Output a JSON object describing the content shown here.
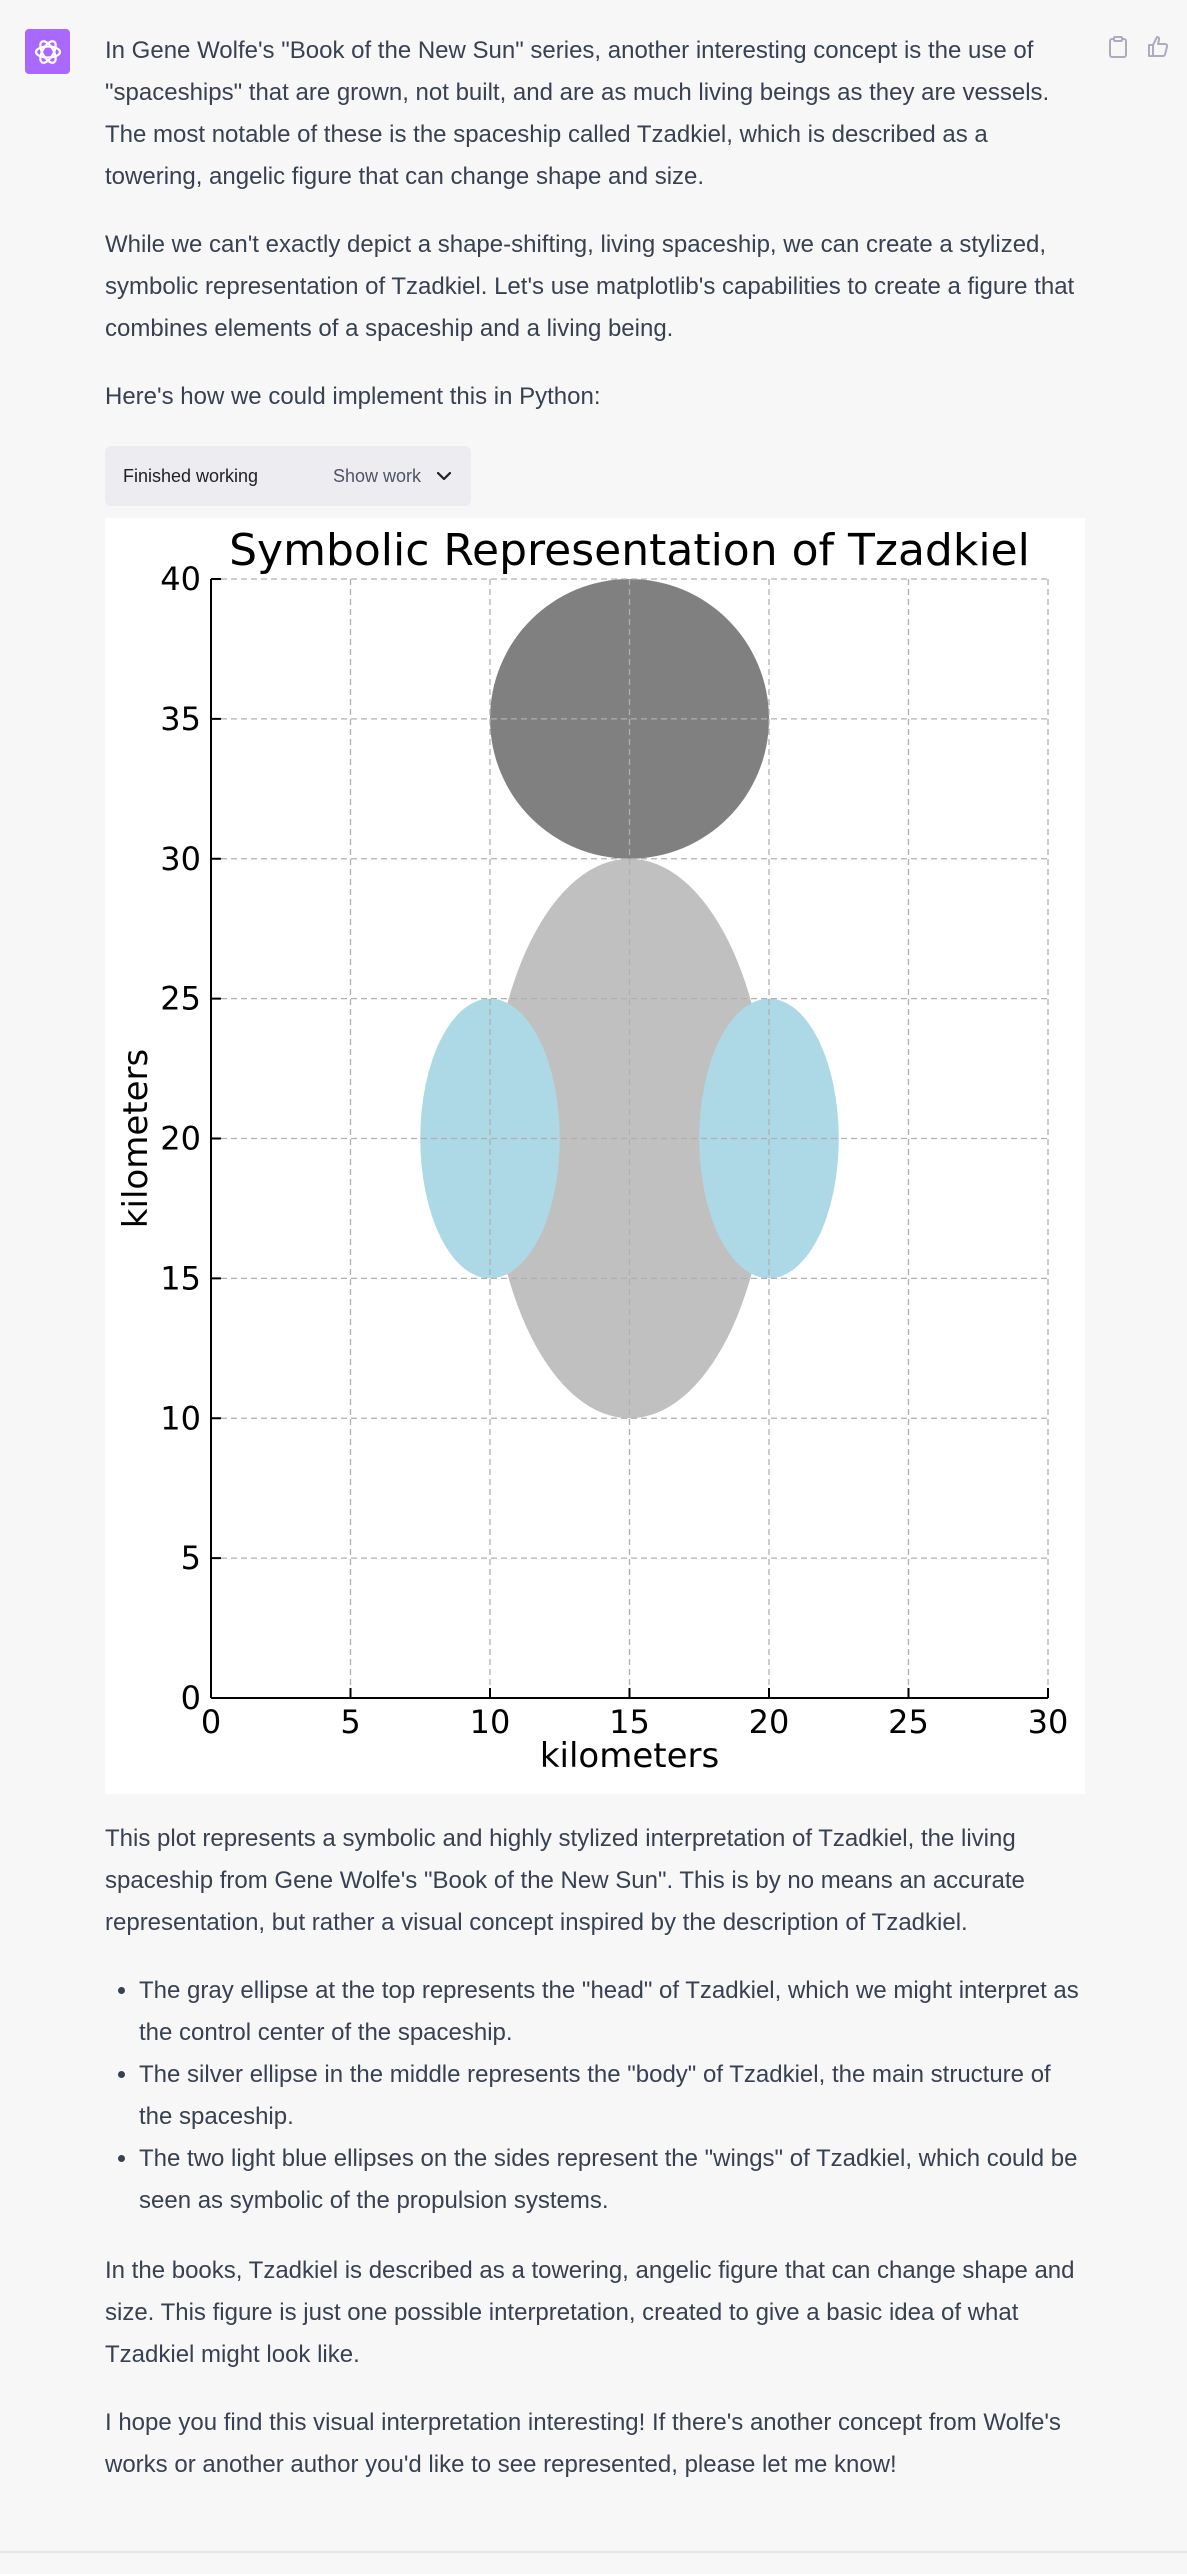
{
  "avatar_icon": "openai-logo-icon",
  "accent_color": "#ab68ff",
  "actions": {
    "copy_icon": "clipboard-icon",
    "like_icon": "thumbs-up-icon"
  },
  "paragraphs": [
    "In Gene Wolfe's \"Book of the New Sun\" series, another interesting concept is the use of \"spaceships\" that are grown, not built, and are as much living beings as they are vessels. The most notable of these is the spaceship called Tzadkiel, which is described as a towering, angelic figure that can change shape and size.",
    "While we can't exactly depict a shape-shifting, living spaceship, we can create a stylized, symbolic representation of Tzadkiel. Let's use matplotlib's capabilities to create a figure that combines elements of a spaceship and a living being.",
    "Here's how we could implement this in Python:"
  ],
  "work": {
    "status": "Finished working",
    "toggle": "Show work",
    "toggle_icon": "chevron-down-icon"
  },
  "chart_data": {
    "type": "scatter",
    "title": "Symbolic Representation of Tzadkiel",
    "xlabel": "kilometers",
    "ylabel": "kilometers",
    "xlim": [
      0,
      30
    ],
    "ylim": [
      0,
      40
    ],
    "xticks": [
      0,
      5,
      10,
      15,
      20,
      25,
      30
    ],
    "yticks": [
      0,
      5,
      10,
      15,
      20,
      25,
      30,
      35,
      40
    ],
    "grid": true,
    "legend": "none",
    "shapes": [
      {
        "kind": "ellipse",
        "center": [
          15,
          20
        ],
        "width": 10,
        "height": 20,
        "color": "#c0c0c0"
      },
      {
        "kind": "ellipse",
        "center": [
          15,
          35
        ],
        "width": 10,
        "height": 10,
        "color": "#808080"
      },
      {
        "kind": "ellipse",
        "center": [
          10,
          20
        ],
        "width": 5,
        "height": 10,
        "color": "#add8e6"
      },
      {
        "kind": "ellipse",
        "center": [
          20,
          20
        ],
        "width": 5,
        "height": 10,
        "color": "#add8e6"
      }
    ]
  },
  "after_chart": "This plot represents a symbolic and highly stylized interpretation of Tzadkiel, the living spaceship from Gene Wolfe's \"Book of the New Sun\". This is by no means an accurate representation, but rather a visual concept inspired by the description of Tzadkiel.",
  "bullets": [
    "The gray ellipse at the top represents the \"head\" of Tzadkiel, which we might interpret as the control center of the spaceship.",
    "The silver ellipse in the middle represents the \"body\" of Tzadkiel, the main structure of the spaceship.",
    "The two light blue ellipses on the sides represent the \"wings\" of Tzadkiel, which could be seen as symbolic of the propulsion systems."
  ],
  "closing": [
    "In the books, Tzadkiel is described as a towering, angelic figure that can change shape and size. This figure is just one possible interpretation, created to give a basic idea of what Tzadkiel might look like.",
    "I hope you find this visual interpretation interesting! If there's another concept from Wolfe's works or another author you'd like to see represented, please let me know!"
  ]
}
